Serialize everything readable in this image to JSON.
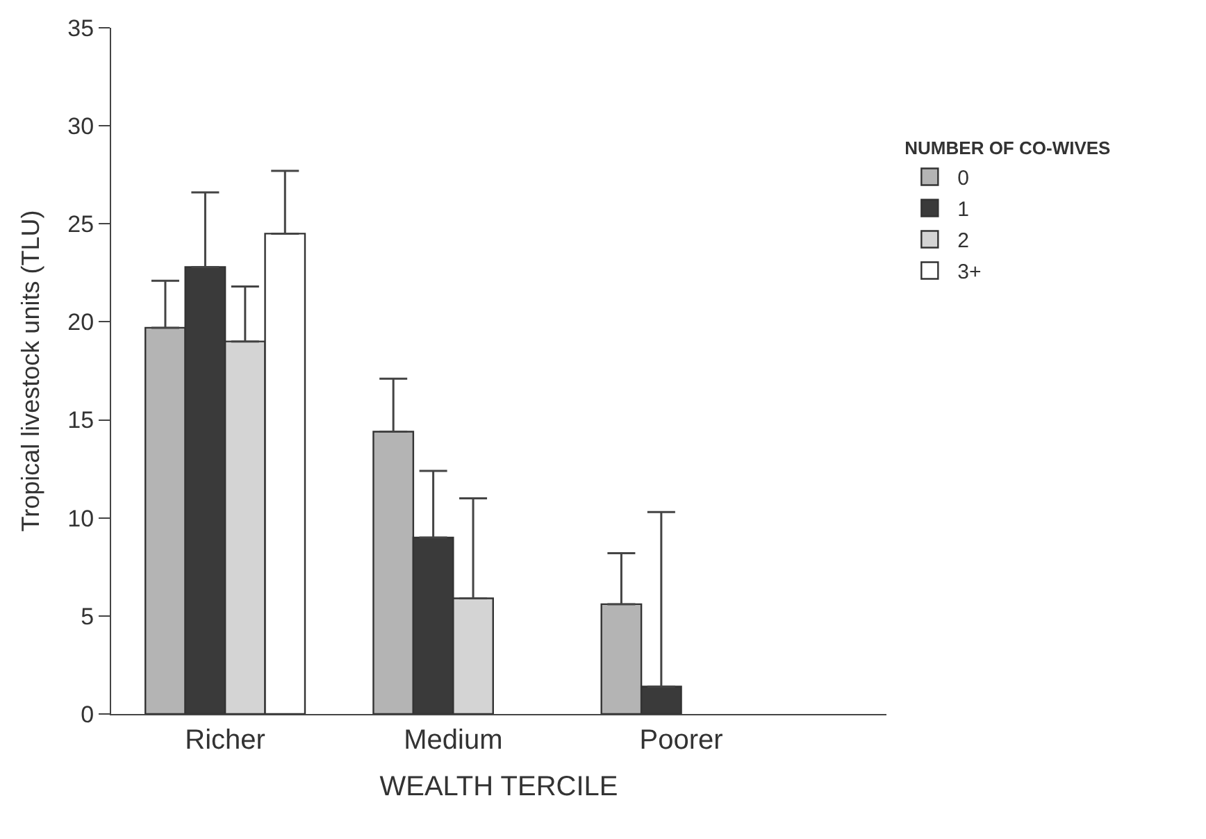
{
  "chart_data": {
    "type": "bar",
    "xlabel": "WEALTH TERCILE",
    "ylabel": "Tropical livestock units (TLU)",
    "legend_title": "NUMBER OF CO-WIVES",
    "categories": [
      "Richer",
      "Medium",
      "Poorer"
    ],
    "series": [
      {
        "name": "0",
        "color": "#b4b4b4",
        "values": [
          19.7,
          14.4,
          5.6
        ],
        "errors": [
          [
            19.7,
            22.1
          ],
          [
            14.4,
            17.1
          ],
          [
            5.6,
            8.2
          ]
        ]
      },
      {
        "name": "1",
        "color": "#3a3a3a",
        "values": [
          22.8,
          9.0,
          1.4
        ],
        "errors": [
          [
            22.8,
            26.6
          ],
          [
            9.0,
            12.4
          ],
          [
            1.4,
            10.3
          ]
        ]
      },
      {
        "name": "2",
        "color": "#d4d4d4",
        "values": [
          19.0,
          5.9,
          null
        ],
        "errors": [
          [
            19.0,
            21.8
          ],
          [
            5.9,
            11.0
          ],
          null
        ]
      },
      {
        "name": "3+",
        "color": "#ffffff",
        "values": [
          24.5,
          null,
          null
        ],
        "errors": [
          [
            24.5,
            27.7
          ],
          null,
          null
        ]
      }
    ],
    "ylim": [
      0,
      35
    ],
    "yticks": [
      0,
      5,
      10,
      15,
      20,
      25,
      30,
      35
    ],
    "legend": "right"
  }
}
